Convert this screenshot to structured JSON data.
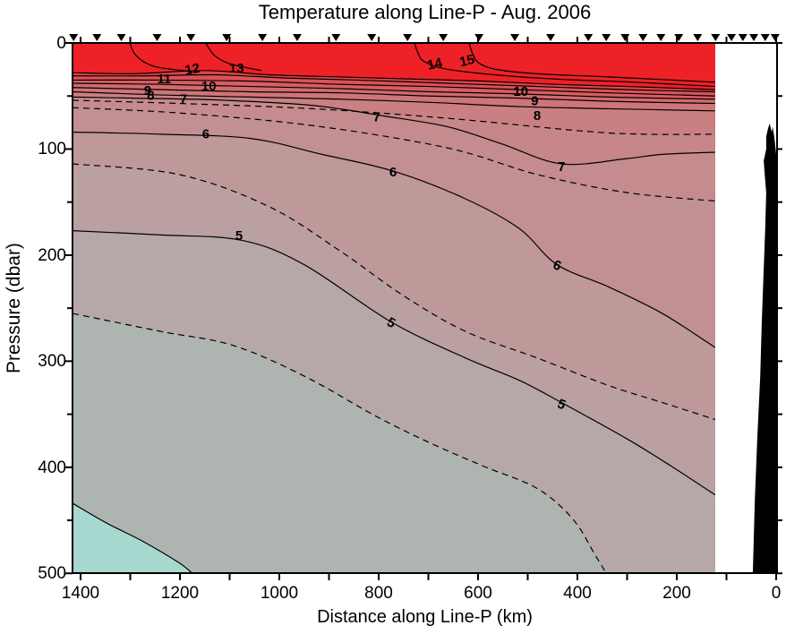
{
  "chart_data": {
    "type": "heatmap",
    "subtype": "filled-contour-section",
    "title": "Temperature along Line-P - Aug. 2006",
    "xlabel": "Distance along Line-P (km)",
    "ylabel": "Pressure (dbar)",
    "x_axis": {
      "min": 0,
      "max": 1416,
      "reversed": true,
      "major_ticks": [
        1400,
        1200,
        1000,
        800,
        600,
        400,
        200,
        0
      ],
      "minor_ticks": [
        1300,
        1100,
        900,
        700,
        500,
        300,
        100
      ]
    },
    "y_axis": {
      "min": 0,
      "max": 500,
      "major_ticks": [
        0,
        100,
        200,
        300,
        400,
        500
      ],
      "minor_ticks": [
        50,
        150,
        250,
        350,
        450
      ]
    },
    "data_extent_km": [
      122,
      1416
    ],
    "top_fill_color": "#ee2127",
    "frame_color": "#000000",
    "station_markers_km": [
      1414,
      1367,
      1318,
      1246,
      1178,
      1106,
      1034,
      964,
      886,
      814,
      742,
      670,
      598,
      526,
      454,
      378,
      342,
      304,
      268,
      232,
      196,
      158,
      122,
      90,
      67,
      45,
      22,
      2
    ],
    "contours": [
      {
        "level": 15,
        "dashed": false,
        "fill_below": null,
        "points": [
          [
            618,
            0
          ],
          [
            611,
            10
          ],
          [
            598,
            19
          ],
          [
            562,
            25
          ],
          [
            481,
            29
          ],
          [
            337,
            32
          ],
          [
            123,
            37
          ]
        ]
      },
      {
        "level": 14,
        "dashed": false,
        "fill_below": null,
        "points": [
          [
            728,
            0
          ],
          [
            722,
            8
          ],
          [
            710,
            17
          ],
          [
            670,
            24
          ],
          [
            589,
            29
          ],
          [
            445,
            34
          ],
          [
            283,
            37
          ],
          [
            123,
            41
          ]
        ]
      },
      {
        "level": 13,
        "dashed": false,
        "fill_below": "#e2444a",
        "points": [
          [
            1416,
            28
          ],
          [
            1292,
            29
          ],
          [
            1148,
            26
          ],
          [
            1022,
            30
          ],
          [
            878,
            32
          ],
          [
            733,
            34
          ],
          [
            589,
            36
          ],
          [
            445,
            39
          ],
          [
            301,
            41
          ],
          [
            123,
            44
          ]
        ]
      },
      {
        "level": 12,
        "dashed": false,
        "fill_below": "#dc5157",
        "points": [
          [
            1416,
            31
          ],
          [
            1274,
            31
          ],
          [
            1130,
            30
          ],
          [
            986,
            33
          ],
          [
            841,
            35
          ],
          [
            661,
            38
          ],
          [
            481,
            41
          ],
          [
            301,
            44
          ],
          [
            123,
            46
          ]
        ]
      },
      {
        "level": 11,
        "dashed": false,
        "fill_below": "#d75e62",
        "points": [
          [
            1416,
            35
          ],
          [
            1238,
            35
          ],
          [
            1058,
            36
          ],
          [
            878,
            39
          ],
          [
            697,
            41
          ],
          [
            517,
            44
          ],
          [
            337,
            47
          ],
          [
            123,
            50
          ]
        ]
      },
      {
        "level": 10,
        "dashed": false,
        "fill_below": "#d26a6d",
        "points": [
          [
            1416,
            38
          ],
          [
            1238,
            39
          ],
          [
            1058,
            41
          ],
          [
            878,
            43
          ],
          [
            697,
            46
          ],
          [
            517,
            48
          ],
          [
            337,
            51
          ],
          [
            123,
            53
          ]
        ]
      },
      {
        "level": 9,
        "dashed": false,
        "fill_below": "#cd7578",
        "points": [
          [
            1416,
            42
          ],
          [
            1238,
            44
          ],
          [
            1058,
            46
          ],
          [
            878,
            47
          ],
          [
            697,
            50
          ],
          [
            517,
            52
          ],
          [
            337,
            55
          ],
          [
            123,
            57
          ]
        ]
      },
      {
        "level": 8,
        "dashed": false,
        "fill_below": "#ca7f82",
        "points": [
          [
            1416,
            46
          ],
          [
            1238,
            49
          ],
          [
            1058,
            51
          ],
          [
            878,
            53
          ],
          [
            697,
            56
          ],
          [
            517,
            60
          ],
          [
            337,
            62
          ],
          [
            123,
            64
          ]
        ]
      },
      {
        "level": 7.5,
        "dashed": true,
        "fill_below": "#c78689",
        "points": [
          [
            1416,
            54
          ],
          [
            1202,
            57
          ],
          [
            931,
            62
          ],
          [
            661,
            71
          ],
          [
            391,
            83
          ],
          [
            265,
            86
          ],
          [
            123,
            86
          ]
        ]
      },
      {
        "level": 7,
        "dashed": false,
        "fill_below": "#c58b8e",
        "points": [
          [
            1416,
            51
          ],
          [
            1292,
            52
          ],
          [
            1112,
            54
          ],
          [
            931,
            59
          ],
          [
            787,
            69
          ],
          [
            661,
            79
          ],
          [
            553,
            95
          ],
          [
            432,
            114
          ],
          [
            301,
            109
          ],
          [
            229,
            105
          ],
          [
            123,
            103
          ]
        ]
      },
      {
        "level": 6.5,
        "dashed": true,
        "fill_below": "#c29093",
        "points": [
          [
            1416,
            61
          ],
          [
            1202,
            66
          ],
          [
            931,
            78
          ],
          [
            661,
            99
          ],
          [
            481,
            124
          ],
          [
            301,
            141
          ],
          [
            123,
            149
          ]
        ]
      },
      {
        "level": 6,
        "dashed": false,
        "fill_below": "#bf9899",
        "points": [
          [
            1416,
            84
          ],
          [
            1238,
            86
          ],
          [
            1058,
            90
          ],
          [
            914,
            105
          ],
          [
            769,
            121
          ],
          [
            625,
            147
          ],
          [
            517,
            175
          ],
          [
            441,
            209
          ],
          [
            337,
            230
          ],
          [
            229,
            255
          ],
          [
            123,
            287
          ]
        ]
      },
      {
        "level": 5.5,
        "dashed": true,
        "fill_below": "#bba0a1",
        "points": [
          [
            1416,
            114
          ],
          [
            1202,
            124
          ],
          [
            1022,
            154
          ],
          [
            878,
            196
          ],
          [
            751,
            238
          ],
          [
            625,
            272
          ],
          [
            481,
            297
          ],
          [
            337,
            323
          ],
          [
            229,
            339
          ],
          [
            123,
            355
          ]
        ]
      },
      {
        "level": 5,
        "dashed": false,
        "fill_below": "#b6a8a8",
        "points": [
          [
            1416,
            177
          ],
          [
            1238,
            181
          ],
          [
            1076,
            186
          ],
          [
            950,
            209
          ],
          [
            775,
            263
          ],
          [
            625,
            297
          ],
          [
            517,
            318
          ],
          [
            432,
            339
          ],
          [
            301,
            373
          ],
          [
            211,
            399
          ],
          [
            123,
            426
          ]
        ]
      },
      {
        "level": 4.5,
        "dashed": true,
        "fill_below": "#aeb5b1",
        "points": [
          [
            1416,
            255
          ],
          [
            1238,
            272
          ],
          [
            1094,
            285
          ],
          [
            950,
            314
          ],
          [
            805,
            352
          ],
          [
            697,
            377
          ],
          [
            589,
            399
          ],
          [
            481,
            420
          ],
          [
            409,
            449
          ],
          [
            364,
            483
          ],
          [
            342,
            500
          ]
        ]
      },
      {
        "level": 4,
        "dashed": false,
        "fill_below": "#a7d9d0",
        "points": [
          [
            1416,
            434
          ],
          [
            1346,
            453
          ],
          [
            1274,
            470
          ],
          [
            1202,
            490
          ],
          [
            1175,
            500
          ]
        ]
      }
    ],
    "surface_outcrop_lines": [
      {
        "points": [
          [
            1301,
            0
          ],
          [
            1288,
            12
          ],
          [
            1252,
            22
          ],
          [
            1175,
            27
          ]
        ]
      },
      {
        "points": [
          [
            1148,
            0
          ],
          [
            1130,
            12
          ],
          [
            1097,
            20
          ],
          [
            1036,
            26
          ]
        ]
      }
    ],
    "contour_labels": [
      {
        "text": "11",
        "km": 1232,
        "dbar": 34,
        "rot": 0
      },
      {
        "text": "12",
        "km": 1175,
        "dbar": 25,
        "rot": -10
      },
      {
        "text": "13",
        "km": 1086,
        "dbar": 24,
        "rot": 0
      },
      {
        "text": "10",
        "km": 1142,
        "dbar": 41,
        "rot": 0
      },
      {
        "text": "9",
        "km": 1265,
        "dbar": 45,
        "rot": 0
      },
      {
        "text": "8",
        "km": 1259,
        "dbar": 50,
        "rot": 0
      },
      {
        "text": "7",
        "km": 1193,
        "dbar": 53,
        "rot": 0
      },
      {
        "text": "6",
        "km": 1148,
        "dbar": 86,
        "rot": 0
      },
      {
        "text": "5",
        "km": 1081,
        "dbar": 182,
        "rot": 0
      },
      {
        "text": "14",
        "km": 687,
        "dbar": 20,
        "rot": -12
      },
      {
        "text": "15",
        "km": 622,
        "dbar": 17,
        "rot": -14
      },
      {
        "text": "10",
        "km": 514,
        "dbar": 46,
        "rot": 0
      },
      {
        "text": "9",
        "km": 486,
        "dbar": 55,
        "rot": 0
      },
      {
        "text": "8",
        "km": 481,
        "dbar": 69,
        "rot": 0
      },
      {
        "text": "7",
        "km": 804,
        "dbar": 70,
        "rot": 0
      },
      {
        "text": "7",
        "km": 432,
        "dbar": 117,
        "rot": 0
      },
      {
        "text": "6",
        "km": 771,
        "dbar": 122,
        "rot": 0
      },
      {
        "text": "6",
        "km": 441,
        "dbar": 210,
        "rot": 22
      },
      {
        "text": "5",
        "km": 775,
        "dbar": 264,
        "rot": 28
      },
      {
        "text": "5",
        "km": 432,
        "dbar": 341,
        "rot": 22
      }
    ],
    "bathymetry_km_dbar": [
      [
        0,
        500
      ],
      [
        47,
        500
      ],
      [
        43,
        432
      ],
      [
        38,
        373
      ],
      [
        32,
        314
      ],
      [
        29,
        264
      ],
      [
        25,
        213
      ],
      [
        22,
        175
      ],
      [
        20,
        141
      ],
      [
        23,
        124
      ],
      [
        25,
        111
      ],
      [
        20,
        100
      ],
      [
        20,
        88
      ],
      [
        16,
        80
      ],
      [
        13,
        76
      ],
      [
        9,
        84
      ],
      [
        7,
        79
      ],
      [
        4,
        88
      ],
      [
        2,
        96
      ],
      [
        0,
        105
      ],
      [
        0,
        116
      ]
    ]
  }
}
